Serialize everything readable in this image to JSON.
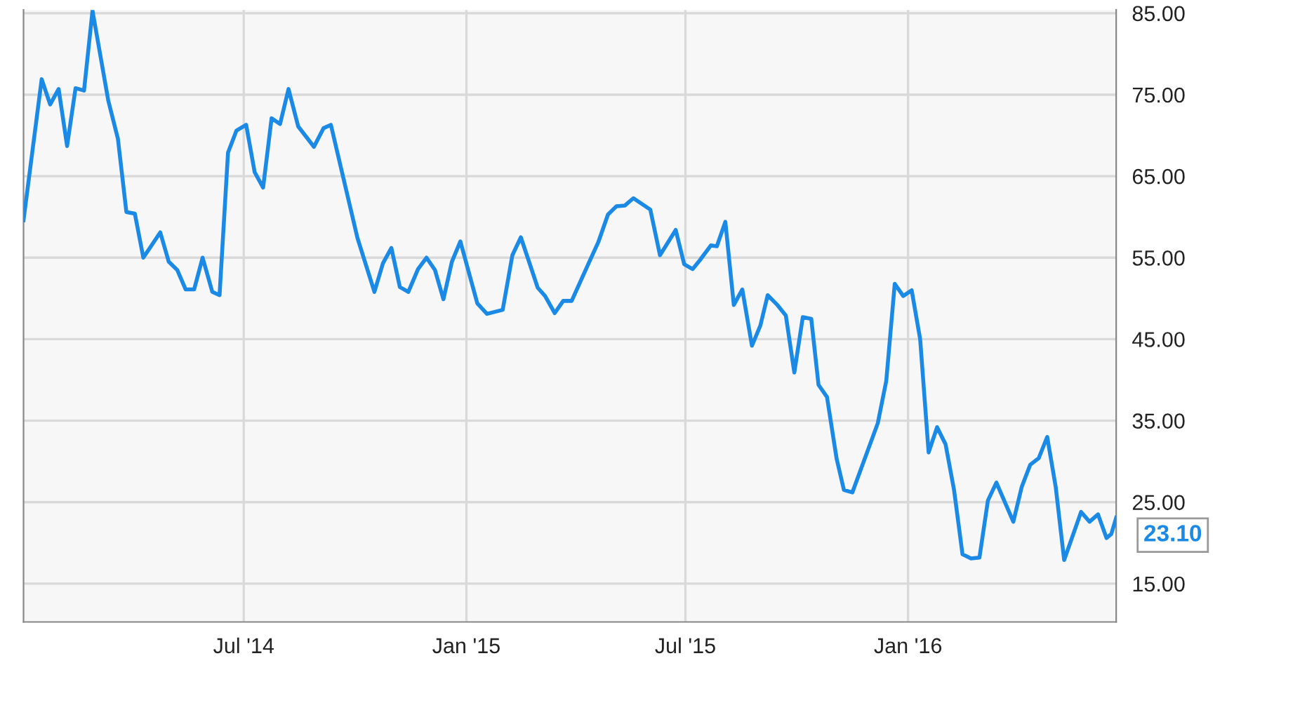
{
  "chart_data": {
    "type": "line",
    "x": [
      "2013-12-31",
      "2014-01-15",
      "2014-01-22",
      "2014-01-29",
      "2014-02-05",
      "2014-02-12",
      "2014-02-19",
      "2014-02-26",
      "2014-03-11",
      "2014-03-19",
      "2014-03-26",
      "2014-04-02",
      "2014-04-09",
      "2014-04-23",
      "2014-04-30",
      "2014-05-07",
      "2014-05-14",
      "2014-05-21",
      "2014-05-28",
      "2014-06-05",
      "2014-06-11",
      "2014-06-18",
      "2014-06-25",
      "2014-07-03",
      "2014-07-10",
      "2014-07-17",
      "2014-07-24",
      "2014-07-31",
      "2014-08-07",
      "2014-08-15",
      "2014-08-28",
      "2014-09-05",
      "2014-09-11",
      "2014-10-03",
      "2014-10-17",
      "2014-10-24",
      "2014-10-31",
      "2014-11-07",
      "2014-11-14",
      "2014-11-22",
      "2014-11-29",
      "2014-12-06",
      "2014-12-13",
      "2014-12-20",
      "2014-12-27",
      "2015-01-10",
      "2015-01-18",
      "2015-01-31",
      "2015-02-08",
      "2015-02-15",
      "2015-03-01",
      "2015-03-07",
      "2015-03-15",
      "2015-03-22",
      "2015-03-29",
      "2015-04-12",
      "2015-04-20",
      "2015-04-28",
      "2015-05-05",
      "2015-05-12",
      "2015-05-19",
      "2015-06-02",
      "2015-06-10",
      "2015-06-23",
      "2015-06-30",
      "2015-07-07",
      "2015-07-13",
      "2015-07-22",
      "2015-07-27",
      "2015-08-03",
      "2015-08-10",
      "2015-08-17",
      "2015-08-25",
      "2015-09-01",
      "2015-09-07",
      "2015-09-15",
      "2015-09-22",
      "2015-09-29",
      "2015-10-06",
      "2015-10-13",
      "2015-10-19",
      "2015-10-26",
      "2015-11-03",
      "2015-11-09",
      "2015-11-16",
      "2015-12-07",
      "2015-12-14",
      "2015-12-21",
      "2015-12-28",
      "2016-01-04",
      "2016-01-11",
      "2016-01-18",
      "2016-01-25",
      "2016-02-01",
      "2016-02-08",
      "2016-02-15",
      "2016-02-22",
      "2016-02-29",
      "2016-03-07",
      "2016-03-14",
      "2016-03-28",
      "2016-04-04",
      "2016-04-11",
      "2016-04-18",
      "2016-04-25",
      "2016-05-02",
      "2016-05-09",
      "2016-05-23",
      "2016-05-30",
      "2016-06-06",
      "2016-06-13",
      "2016-06-17",
      "2016-06-21"
    ],
    "series": [
      {
        "color": "#1a8ae6",
        "values": [
          59.6,
          76.9,
          73.8,
          75.7,
          68.7,
          75.8,
          75.5,
          85.3,
          74.3,
          69.6,
          60.6,
          60.4,
          55.0,
          58.1,
          54.5,
          53.5,
          51.1,
          51.1,
          55.0,
          50.8,
          50.4,
          67.9,
          70.6,
          71.3,
          65.5,
          63.6,
          72.1,
          71.4,
          75.7,
          71.1,
          68.6,
          70.9,
          71.3,
          57.4,
          50.8,
          54.3,
          56.2,
          51.4,
          50.8,
          53.6,
          55.0,
          53.5,
          49.9,
          54.5,
          57.0,
          49.4,
          48.1,
          48.6,
          55.3,
          57.5,
          51.3,
          50.3,
          48.2,
          49.7,
          49.7,
          54.3,
          56.9,
          60.3,
          61.3,
          61.4,
          62.3,
          60.9,
          55.3,
          58.4,
          54.2,
          53.6,
          54.7,
          56.5,
          56.4,
          59.4,
          49.2,
          51.1,
          44.2,
          46.7,
          50.4,
          49.2,
          47.9,
          40.9,
          47.7,
          47.5,
          39.4,
          37.9,
          30.3,
          26.5,
          26.2,
          34.7,
          39.9,
          51.8,
          50.3,
          51.0,
          45.0,
          31.1,
          34.2,
          32.1,
          26.5,
          18.6,
          18.1,
          18.2,
          25.2,
          27.4,
          22.6,
          26.9,
          29.6,
          30.4,
          33.0,
          26.9,
          17.9,
          23.8,
          22.6,
          23.5,
          20.6,
          21.1,
          23.1
        ]
      }
    ],
    "xlim": [
      "2013-12-31",
      "2016-06-21"
    ],
    "xticks": [
      {
        "value": "2014-07-01",
        "label": "Jul '14"
      },
      {
        "value": "2015-01-01",
        "label": "Jan '15"
      },
      {
        "value": "2015-07-01",
        "label": "Jul '15"
      },
      {
        "value": "2016-01-01",
        "label": "Jan '16"
      }
    ],
    "ylim": [
      10.3,
      85.4
    ],
    "yticks": [
      {
        "value": 15,
        "label": "15.00"
      },
      {
        "value": 25,
        "label": "25.00"
      },
      {
        "value": 35,
        "label": "35.00"
      },
      {
        "value": 45,
        "label": "45.00"
      },
      {
        "value": 55,
        "label": "55.00"
      },
      {
        "value": 65,
        "label": "65.00"
      },
      {
        "value": 75,
        "label": "75.00"
      },
      {
        "value": 85,
        "label": "85.00"
      }
    ],
    "annotations": [
      {
        "text": "23.10",
        "x": "2016-06-21",
        "y": 23.1
      }
    ],
    "grid": true,
    "marker": "none",
    "line_style": "solid"
  }
}
